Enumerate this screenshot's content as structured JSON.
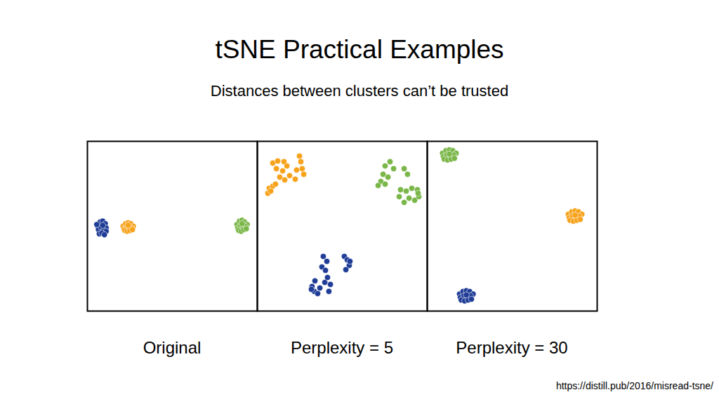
{
  "title": "tSNE Practical Examples",
  "subtitle": "Distances between clusters can’t be trusted",
  "source": "https://distill.pub/2016/misread-tsne/",
  "chart_data": [
    {
      "type": "scatter",
      "title": "Original",
      "xlim": [
        0,
        100
      ],
      "ylim": [
        0,
        100
      ],
      "tick_labels": false,
      "series": [
        {
          "color": "#1f3c96",
          "x": [
            6,
            7.5,
            9,
            10.5,
            11,
            6.5,
            8,
            9.5,
            11,
            7,
            8.5,
            10,
            5.5,
            9
          ],
          "y": [
            50,
            52.5,
            53,
            51.5,
            49,
            48,
            49.5,
            47.5,
            47,
            45.5,
            46,
            45,
            51,
            50.5
          ]
        },
        {
          "color": "#f7a21b",
          "x": [
            21,
            22.5,
            24,
            25.5,
            27,
            21.5,
            23,
            24.5,
            26,
            22,
            23.5,
            25,
            26.5,
            24
          ],
          "y": [
            50,
            51.5,
            52,
            51.5,
            50,
            48.5,
            49,
            48.5,
            49,
            47.5,
            47,
            47.5,
            48,
            50.5
          ]
        },
        {
          "color": "#7ab648",
          "x": [
            88,
            89.5,
            91,
            92.5,
            94,
            88.5,
            90,
            91.5,
            93,
            89,
            90.5,
            92,
            93.5,
            91
          ],
          "y": [
            51,
            53,
            53.5,
            52.5,
            51,
            49,
            50,
            49.5,
            50,
            47.5,
            47,
            48,
            48.5,
            51.5
          ]
        }
      ]
    },
    {
      "type": "scatter",
      "title": "Perplexity = 5",
      "xlim": [
        0,
        100
      ],
      "ylim": [
        0,
        100
      ],
      "tick_labels": false,
      "series": [
        {
          "color": "#f7a21b",
          "x": [
            9.1,
            12.0,
            15.7,
            17.4,
            14.9,
            11.2,
            24.8,
            25.6,
            26.4,
            27.3,
            23.1,
            19.0,
            16.1,
            13.2,
            7.0,
            6.2,
            9.1,
            10.7,
            7.9,
            22.3
          ],
          "y": [
            87.2,
            88.4,
            88.0,
            85.5,
            82.6,
            83.9,
            91.3,
            88.0,
            83.9,
            80.6,
            83.1,
            79.8,
            77.3,
            78.9,
            72.3,
            69.4,
            73.6,
            74.8,
            70.7,
            77.7
          ]
        },
        {
          "color": "#7ab648",
          "x": [
            75.2,
            78.1,
            80.2,
            74.0,
            76.9,
            72.7,
            71.1,
            75.2,
            86.4,
            88.4,
            84.3,
            87.6,
            90.9,
            94.2,
            95.0,
            92.6,
            89.3,
            86.4,
            83.5,
            94.6
          ],
          "y": [
            85.5,
            88.0,
            83.9,
            80.6,
            78.9,
            76.4,
            74.0,
            74.8,
            83.9,
            80.6,
            71.5,
            70.7,
            72.3,
            71.5,
            67.4,
            65.3,
            66.5,
            64.0,
            67.4,
            69.4
          ]
        },
        {
          "color": "#1f3c96",
          "x": [
            38.8,
            40.9,
            38.0,
            40.1,
            33.9,
            32.2,
            33.5,
            36.8,
            39.7,
            41.3,
            43.0,
            42.1,
            51.2,
            52.9,
            54.1,
            52.1,
            54.5,
            35.5,
            31.8
          ],
          "y": [
            32.2,
            29.3,
            26.0,
            24.0,
            17.8,
            14.5,
            11.6,
            13.6,
            16.9,
            19.8,
            15.7,
            11.6,
            32.2,
            30.2,
            26.9,
            24.4,
            29.3,
            10.3,
            12.8
          ]
        }
      ]
    },
    {
      "type": "scatter",
      "title": "Perplexity = 30",
      "xlim": [
        0,
        100
      ],
      "ylim": [
        0,
        100
      ],
      "tick_labels": false,
      "series": [
        {
          "color": "#7ab648",
          "x": [
            9,
            11,
            13,
            15,
            17,
            9.5,
            11.5,
            13.5,
            15.5,
            10,
            12,
            14,
            16,
            13
          ],
          "y": [
            93,
            94.5,
            95,
            94.5,
            93,
            91,
            92,
            91.5,
            92,
            89.5,
            89,
            89.5,
            90,
            92.5
          ]
        },
        {
          "color": "#f7a21b",
          "x": [
            83,
            85,
            87,
            89,
            91,
            83.5,
            85.5,
            87.5,
            89.5,
            84,
            86,
            88,
            90,
            87
          ],
          "y": [
            57,
            58.5,
            59,
            58.5,
            57,
            55,
            56,
            55.5,
            56,
            53.5,
            53,
            53.5,
            54,
            56.5
          ]
        },
        {
          "color": "#1f3c96",
          "x": [
            19,
            21,
            23,
            25,
            27,
            19.5,
            21.5,
            23.5,
            25.5,
            20,
            22,
            24,
            26,
            23
          ],
          "y": [
            10,
            11.5,
            12,
            11.5,
            10,
            8,
            9,
            8.5,
            9,
            6.5,
            6,
            6.5,
            7,
            9.5
          ]
        }
      ]
    }
  ]
}
